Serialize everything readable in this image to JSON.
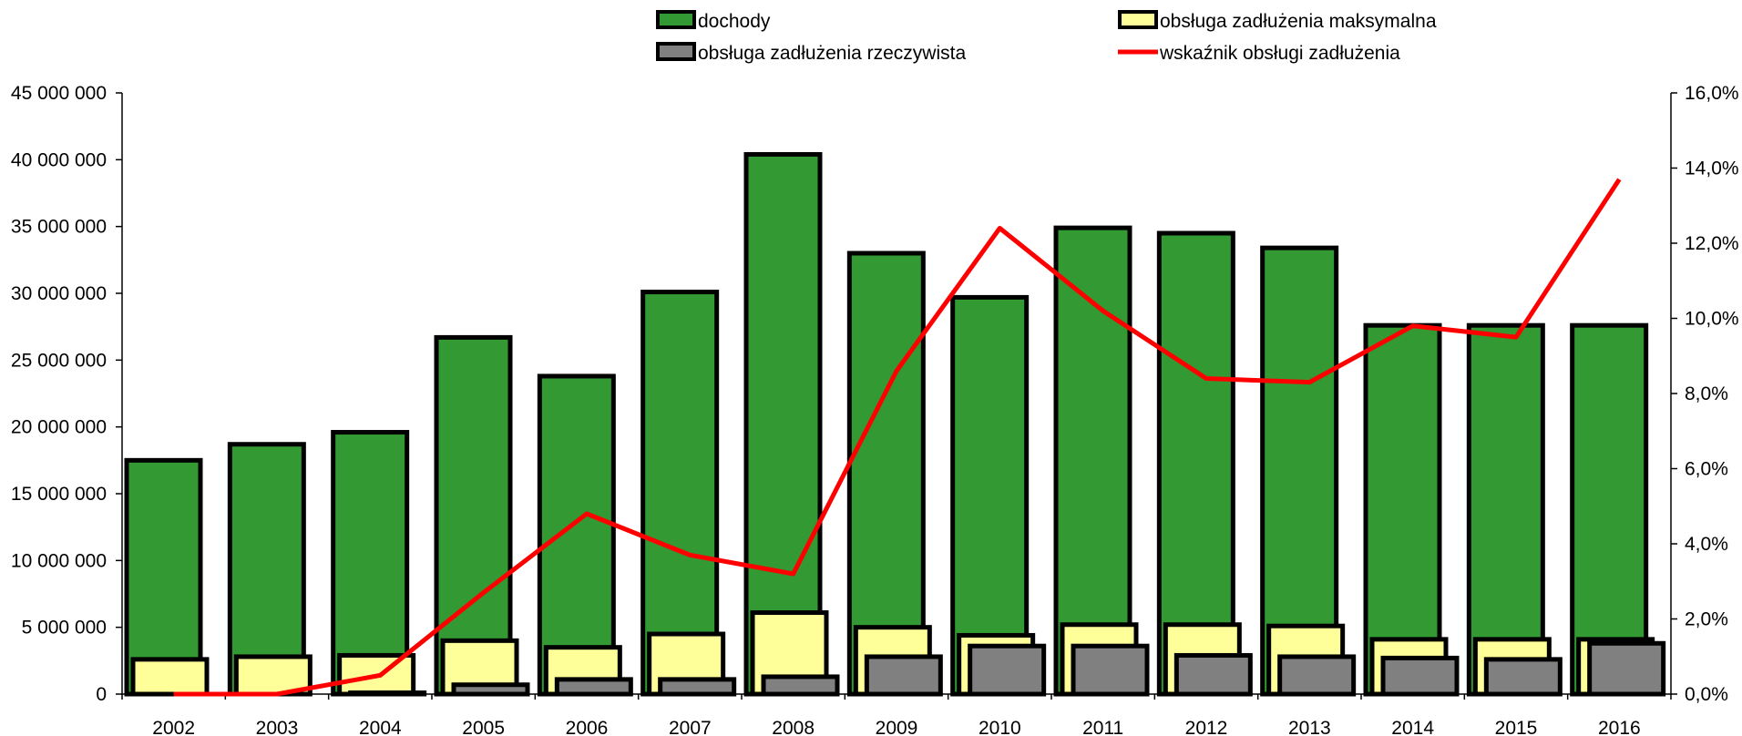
{
  "chart_data": {
    "type": "bar",
    "categories": [
      "2002",
      "2003",
      "2004",
      "2005",
      "2006",
      "2007",
      "2008",
      "2009",
      "2010",
      "2011",
      "2012",
      "2013",
      "2014",
      "2015",
      "2016"
    ],
    "series": [
      {
        "name": "dochody",
        "kind": "bar",
        "axis": "left",
        "color": "#339933",
        "values": [
          17500000,
          18700000,
          19600000,
          26700000,
          23800000,
          30100000,
          40400000,
          33000000,
          29700000,
          34900000,
          34500000,
          33400000,
          27600000,
          27600000,
          27600000
        ]
      },
      {
        "name": "obsługa zadłużenia maksymalna",
        "kind": "bar",
        "axis": "left",
        "color": "#ffff99",
        "values": [
          2600000,
          2800000,
          2900000,
          4000000,
          3500000,
          4500000,
          6100000,
          5000000,
          4400000,
          5200000,
          5200000,
          5100000,
          4100000,
          4100000,
          4100000
        ]
      },
      {
        "name": "obsługa zadłużenia rzeczywista",
        "kind": "bar",
        "axis": "left",
        "color": "#808080",
        "values": [
          0,
          0,
          100000,
          700000,
          1100000,
          1100000,
          1300000,
          2800000,
          3600000,
          3600000,
          2900000,
          2800000,
          2700000,
          2600000,
          3800000
        ]
      },
      {
        "name": "wskaźnik obsługi zadłużenia",
        "kind": "line",
        "axis": "right",
        "color": "#ff0000",
        "values": [
          0.0,
          0.0,
          0.5,
          2.7,
          4.8,
          3.7,
          3.2,
          8.6,
          12.4,
          10.2,
          8.4,
          8.3,
          9.8,
          9.5,
          13.7
        ]
      }
    ],
    "y_left": {
      "ylim": [
        0,
        45000000
      ],
      "ticks": [
        0,
        5000000,
        10000000,
        15000000,
        20000000,
        25000000,
        30000000,
        35000000,
        40000000,
        45000000
      ],
      "tick_labels": [
        "0",
        "5 000 000",
        "10 000 000",
        "15 000 000",
        "20 000 000",
        "25 000 000",
        "30 000 000",
        "35 000 000",
        "40 000 000",
        "45 000 000"
      ]
    },
    "y_right": {
      "ylim": [
        0,
        16
      ],
      "ticks": [
        0,
        2,
        4,
        6,
        8,
        10,
        12,
        14,
        16
      ],
      "tick_labels": [
        "0,0%",
        "2,0%",
        "4,0%",
        "6,0%",
        "8,0%",
        "10,0%",
        "12,0%",
        "14,0%",
        "16,0%"
      ]
    },
    "xlabel": "",
    "ylabel": "",
    "title": "",
    "grid": false,
    "legend_position": "top"
  }
}
